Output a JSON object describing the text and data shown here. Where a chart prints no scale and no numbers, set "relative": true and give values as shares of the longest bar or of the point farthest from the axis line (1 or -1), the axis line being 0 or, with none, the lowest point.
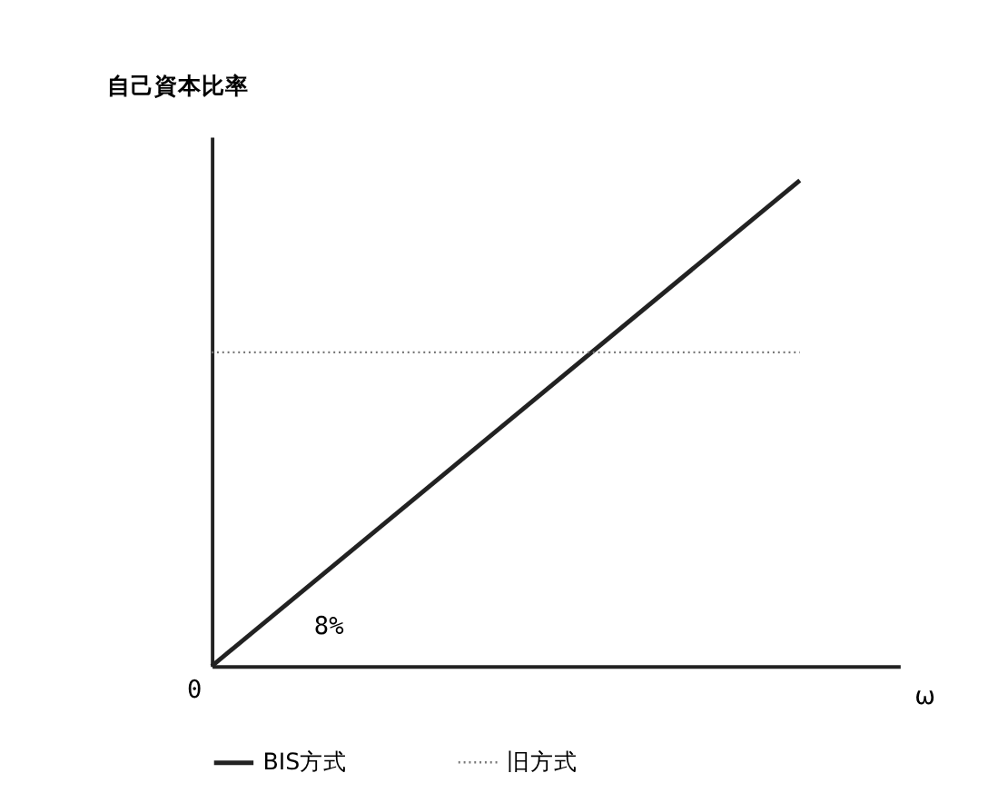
{
  "chart_data": {
    "type": "line",
    "relative": true,
    "ylabel": "自己資本比率",
    "xlabel": "ω",
    "categories": [
      null,
      null
    ],
    "series": [
      {
        "name": "BIS方式",
        "color": "#222222",
        "values": [
          0,
          1
        ],
        "line_style": "solid"
      },
      {
        "name": "旧方式",
        "color": "#777777",
        "values": [
          0.646,
          0.646
        ],
        "line_style": "dotted"
      }
    ],
    "annotations": [
      "0",
      "8%"
    ],
    "grid": false,
    "legend": "bottom"
  }
}
